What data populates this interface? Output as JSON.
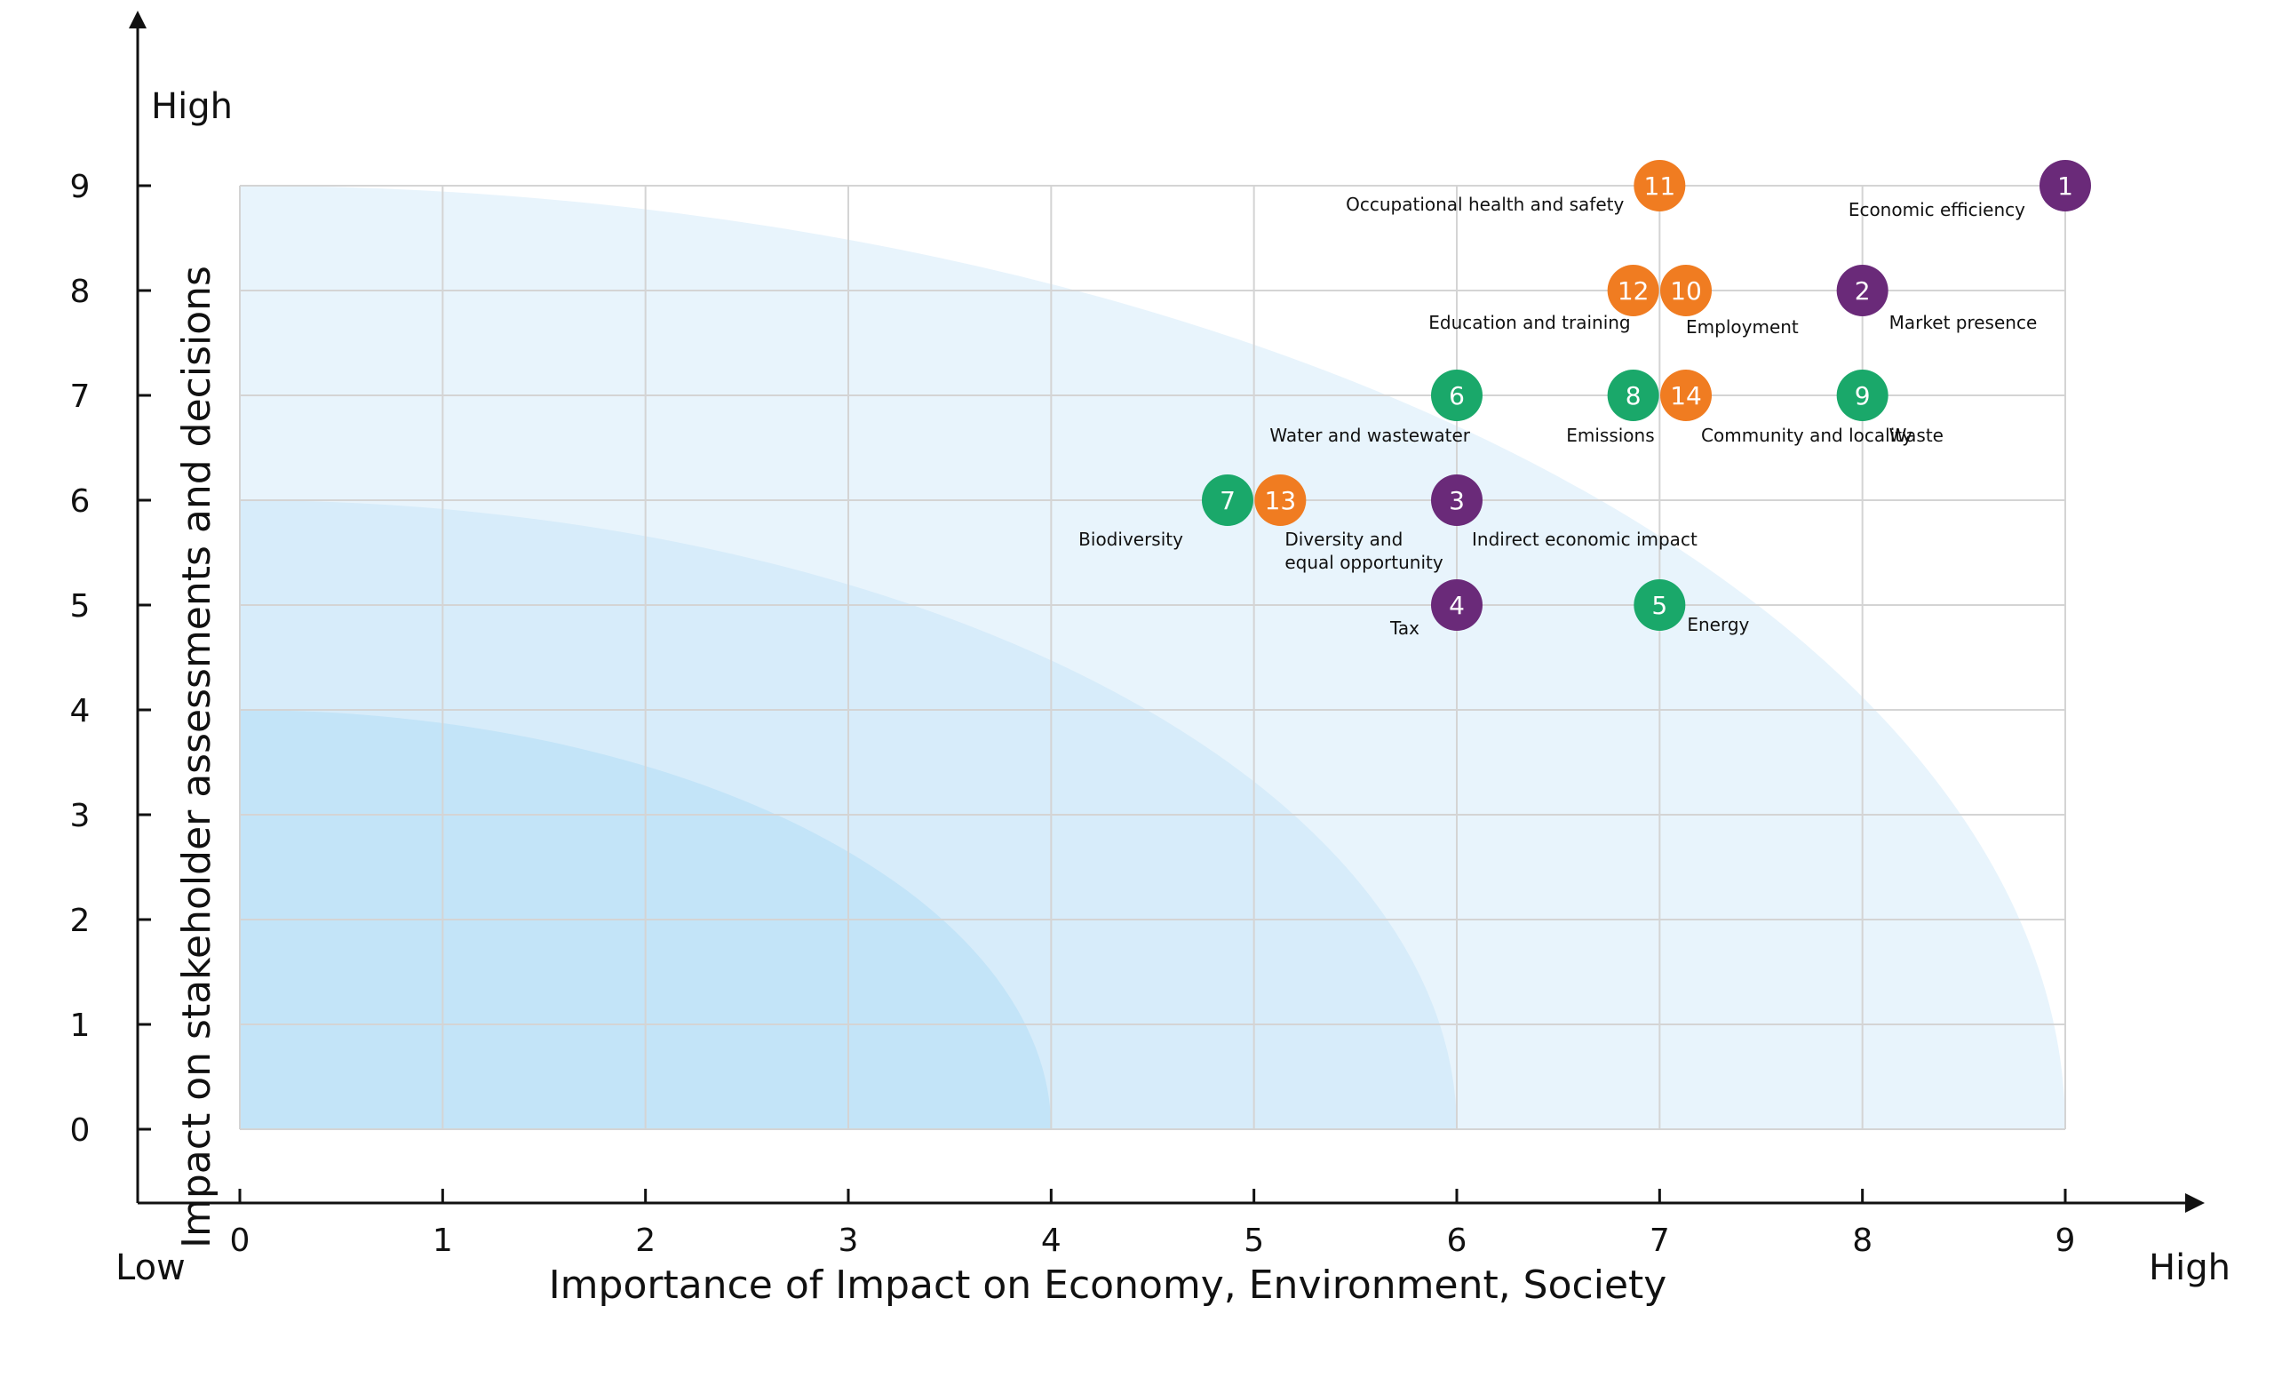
{
  "chart_data": {
    "type": "scatter",
    "xlabel": "Importance of Impact on Economy, Environment, Society",
    "ylabel": "Impact on stakeholder assessments and decisions",
    "x_low_label": "Low",
    "x_high_label": "High",
    "y_high_label": "High",
    "xlim": [
      0,
      9
    ],
    "ylim": [
      0,
      9
    ],
    "x_ticks": [
      "0",
      "1",
      "2",
      "3",
      "4",
      "5",
      "6",
      "7",
      "8",
      "9"
    ],
    "y_ticks": [
      "0",
      "1",
      "2",
      "3",
      "4",
      "5",
      "6",
      "7",
      "8",
      "9"
    ],
    "grid": true,
    "zones": [
      {
        "radius": 9,
        "color": "#e8f4fc"
      },
      {
        "radius": 6,
        "color": "#d7ecfa"
      },
      {
        "radius": 4,
        "color": "#c3e4f8"
      }
    ],
    "group_colors": {
      "economic": "#6a2a79",
      "social": "#f07c21",
      "environmental": "#1aa86a"
    },
    "points": [
      {
        "id": "1",
        "label": "Economic efficiency",
        "x": 9.0,
        "y": 9,
        "group": "economic"
      },
      {
        "id": "2",
        "label": "Market presence",
        "x": 8.0,
        "y": 8,
        "group": "economic"
      },
      {
        "id": "3",
        "label": "Indirect economic impact",
        "x": 6.0,
        "y": 6,
        "group": "economic"
      },
      {
        "id": "4",
        "label": "Tax",
        "x": 6.0,
        "y": 5,
        "group": "economic"
      },
      {
        "id": "5",
        "label": "Energy",
        "x": 7.0,
        "y": 5,
        "group": "environmental"
      },
      {
        "id": "6",
        "label": "Water and wastewater",
        "x": 6.0,
        "y": 7,
        "group": "environmental"
      },
      {
        "id": "7",
        "label": "Biodiversity",
        "x": 4.87,
        "y": 6,
        "group": "environmental"
      },
      {
        "id": "8",
        "label": "Emissions",
        "x": 6.87,
        "y": 7,
        "group": "environmental"
      },
      {
        "id": "9",
        "label": "Waste",
        "x": 8.0,
        "y": 7,
        "group": "environmental"
      },
      {
        "id": "10",
        "label": "Employment",
        "x": 7.13,
        "y": 8,
        "group": "social"
      },
      {
        "id": "11",
        "label": "Occupational health and safety",
        "x": 7.0,
        "y": 9,
        "group": "social"
      },
      {
        "id": "12",
        "label": "Education and training",
        "x": 6.87,
        "y": 8,
        "group": "social"
      },
      {
        "id": "13",
        "label": "Diversity and equal opportunity",
        "x": 5.13,
        "y": 6,
        "group": "social"
      },
      {
        "id": "14",
        "label": "Community and locality",
        "x": 7.13,
        "y": 7,
        "group": "social"
      }
    ]
  }
}
